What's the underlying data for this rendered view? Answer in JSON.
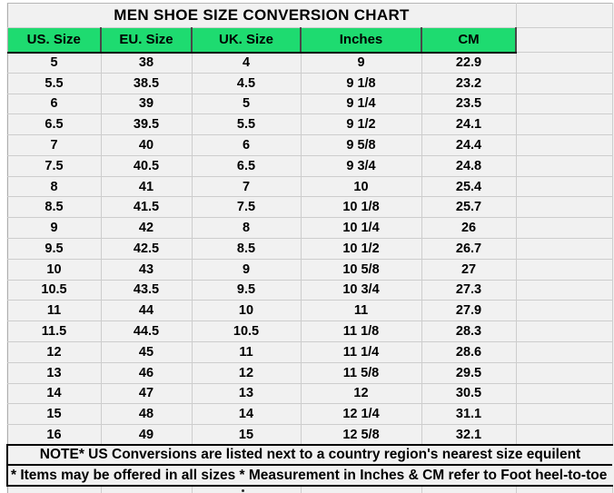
{
  "title": "MEN SHOE SIZE CONVERSION CHART",
  "columns": [
    "US. Size",
    "EU. Size",
    "UK. Size",
    "Inches",
    "CM"
  ],
  "rows": [
    [
      "5",
      "38",
      "4",
      "9",
      "22.9"
    ],
    [
      "5.5",
      "38.5",
      "4.5",
      "9 1/8",
      "23.2"
    ],
    [
      "6",
      "39",
      "5",
      "9 1/4",
      "23.5"
    ],
    [
      "6.5",
      "39.5",
      "5.5",
      "9 1/2",
      "24.1"
    ],
    [
      "7",
      "40",
      "6",
      "9 5/8",
      "24.4"
    ],
    [
      "7.5",
      "40.5",
      "6.5",
      "9 3/4",
      "24.8"
    ],
    [
      "8",
      "41",
      "7",
      "10",
      "25.4"
    ],
    [
      "8.5",
      "41.5",
      "7.5",
      "10 1/8",
      "25.7"
    ],
    [
      "9",
      "42",
      "8",
      "10 1/4",
      "26"
    ],
    [
      "9.5",
      "42.5",
      "8.5",
      "10 1/2",
      "26.7"
    ],
    [
      "10",
      "43",
      "9",
      "10 5/8",
      "27"
    ],
    [
      "10.5",
      "43.5",
      "9.5",
      "10 3/4",
      "27.3"
    ],
    [
      "11",
      "44",
      "10",
      "11",
      "27.9"
    ],
    [
      "11.5",
      "44.5",
      "10.5",
      "11 1/8",
      "28.3"
    ],
    [
      "12",
      "45",
      "11",
      "11 1/4",
      "28.6"
    ],
    [
      "13",
      "46",
      "12",
      "11 5/8",
      "29.5"
    ],
    [
      "14",
      "47",
      "13",
      "12",
      "30.5"
    ],
    [
      "15",
      "48",
      "14",
      "12 1/4",
      "31.1"
    ],
    [
      "16",
      "49",
      "15",
      "12 5/8",
      "32.1"
    ]
  ],
  "notes": {
    "note1": "NOTE* US Conversions are listed next to a country region's nearest size equilent",
    "note2": "* Items may be offered in all sizes * Measurement in Inches & CM refer to Foot heel-to-toe"
  },
  "colors": {
    "header_bg": "#1edb70",
    "title_text": "#24da77",
    "cell_bg": "#f1f1f1",
    "grid_line": "#cdcdcd",
    "note_border": "#000000"
  }
}
